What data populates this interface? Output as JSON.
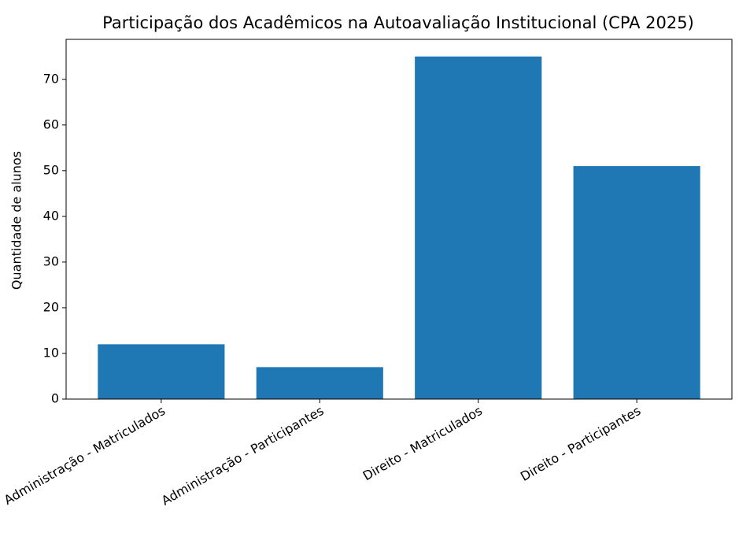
{
  "chart_data": {
    "type": "bar",
    "title": "Participação dos Acadêmicos na Autoavaliação Institucional (CPA 2025)",
    "y_label": "Quantidade de alunos",
    "categories": [
      "Administração - Matriculados",
      "Administração - Participantes",
      "Direito - Matriculados",
      "Direito - Participantes"
    ],
    "values": [
      12,
      7,
      75,
      51
    ],
    "color": "#1f77b4",
    "ylim": [
      0,
      78.75
    ],
    "yticks": [
      0,
      10,
      20,
      30,
      40,
      50,
      60,
      70
    ],
    "grid": false
  }
}
